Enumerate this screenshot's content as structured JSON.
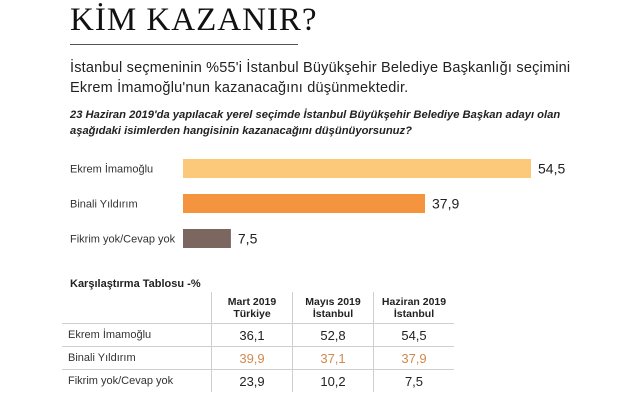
{
  "header": {
    "title": "KİM KAZANIR?",
    "lead": "İstanbul seçmeninin %55'i İstanbul Büyükşehir Belediye Başkanlığı seçimini Ekrem İmamoğlu'nun kazanacağını düşünmektedir.",
    "question": "23 Haziran 2019'da yapılacak yerel seçimde İstanbul Büyükşehir Belediye Başkan adayı olan aşağıdaki isimlerden hangisinin kazanacağını düşünüyorsunuz?"
  },
  "chart_data": {
    "type": "bar",
    "orientation": "horizontal",
    "categories": [
      "Ekrem İmamoğlu",
      "Binali Yıldırım",
      "Fikrim yok/Cevap yok"
    ],
    "values": [
      54.5,
      37.9,
      7.5
    ],
    "value_labels": [
      "54,5",
      "37,9",
      "7,5"
    ],
    "colors": [
      "#fcc97a",
      "#f5943f",
      "#7b6660"
    ],
    "xlim": [
      0,
      54.5
    ],
    "grid": false,
    "legend": "none"
  },
  "comparison": {
    "title": "Karşılaştırma Tablosu -%",
    "columns": [
      {
        "period": "Mart 2019",
        "region": "Türkiye"
      },
      {
        "period": "Mayıs 2019",
        "region": "İstanbul"
      },
      {
        "period": "Haziran 2019",
        "region": "İstanbul"
      }
    ],
    "rows": [
      {
        "label": "Ekrem İmamoğlu",
        "values": [
          "36,1",
          "52,8",
          "54,5"
        ]
      },
      {
        "label": "Binali Yıldırım",
        "values": [
          "39,9",
          "37,1",
          "37,9"
        ]
      },
      {
        "label": "Fikrim yok/Cevap yok",
        "values": [
          "23,9",
          "10,2",
          "7,5"
        ]
      }
    ],
    "highlight_color": "#d4884a"
  }
}
